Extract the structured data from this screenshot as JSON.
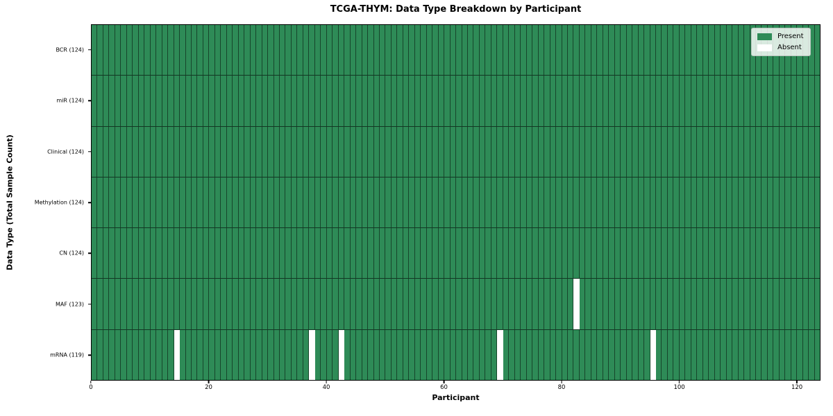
{
  "chart_data": {
    "type": "heatmap",
    "title": "TCGA-THYM: Data Type Breakdown by Participant",
    "xlabel": "Participant",
    "ylabel": "Data Type (Total Sample Count)",
    "n_participants": 124,
    "xlim": [
      0,
      124
    ],
    "x_ticks": [
      0,
      20,
      40,
      60,
      80,
      100,
      120
    ],
    "grid": true,
    "legend_position": "upper right",
    "legend": [
      {
        "label": "Present",
        "color": "#2e8b57"
      },
      {
        "label": "Absent",
        "color": "#ffffff"
      }
    ],
    "colors": {
      "present": "#2e8b57",
      "absent": "#ffffff",
      "cell_edge": "rgba(0,0,0,0.5)",
      "axis": "#000000"
    },
    "rows": [
      {
        "label": "BCR (124)",
        "data_type": "BCR",
        "present_count": 124,
        "absent_participants": []
      },
      {
        "label": "miR (124)",
        "data_type": "miR",
        "present_count": 124,
        "absent_participants": []
      },
      {
        "label": "Clinical (124)",
        "data_type": "Clinical",
        "present_count": 124,
        "absent_participants": []
      },
      {
        "label": "Methylation (124)",
        "data_type": "Methylation",
        "present_count": 124,
        "absent_participants": []
      },
      {
        "label": "CN (124)",
        "data_type": "CN",
        "present_count": 124,
        "absent_participants": []
      },
      {
        "label": "MAF (123)",
        "data_type": "MAF",
        "present_count": 123,
        "absent_participants": [
          82
        ]
      },
      {
        "label": "mRNA (119)",
        "data_type": "mRNA",
        "present_count": 119,
        "absent_participants": [
          14,
          37,
          42,
          69,
          95
        ]
      }
    ]
  }
}
